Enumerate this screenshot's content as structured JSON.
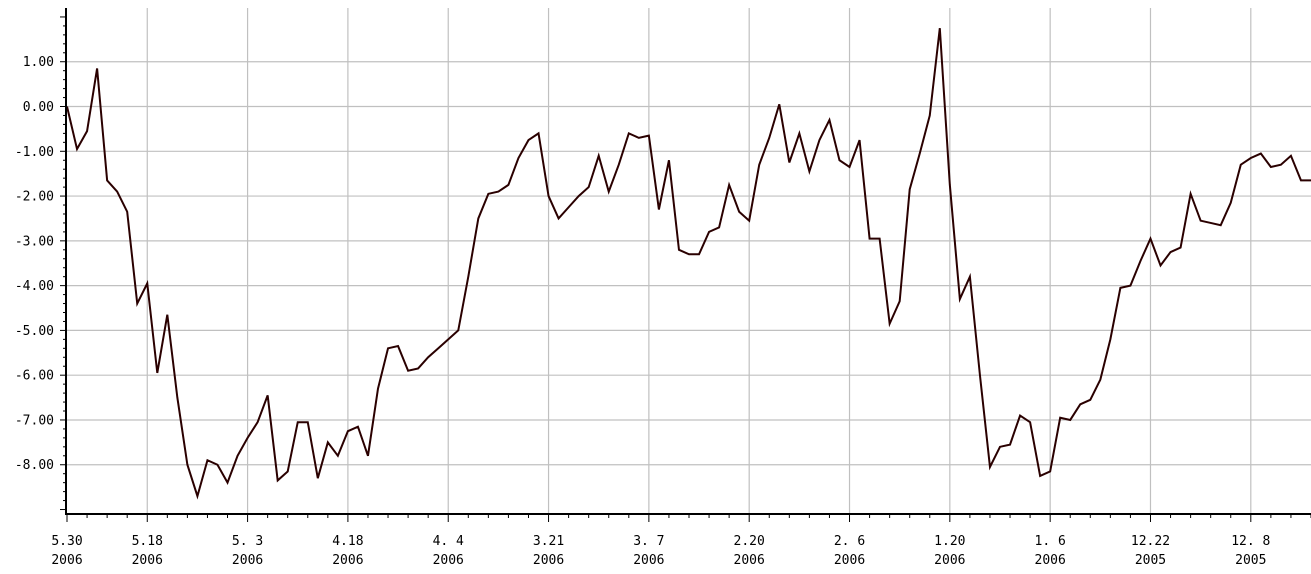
{
  "chart_data": {
    "type": "line",
    "title": "",
    "xlabel": "",
    "ylabel": "",
    "ylim": [
      -9.1,
      2.2
    ],
    "grid": true,
    "line_color": "#2a0000",
    "grid_color": "#c0c0c0",
    "y_ticks": [
      {
        "value": 1.0,
        "label": "1.00"
      },
      {
        "value": 0.0,
        "label": "0.00"
      },
      {
        "value": -1.0,
        "label": "-1.00"
      },
      {
        "value": -2.0,
        "label": "-2.00"
      },
      {
        "value": -3.0,
        "label": "-3.00"
      },
      {
        "value": -4.0,
        "label": "-4.00"
      },
      {
        "value": -5.0,
        "label": "-5.00"
      },
      {
        "value": -6.0,
        "label": "-6.00"
      },
      {
        "value": -7.0,
        "label": "-7.00"
      },
      {
        "value": -8.0,
        "label": "-8.00"
      }
    ],
    "x_ticks": [
      {
        "index": 0,
        "line1": "5.30",
        "line2": "2006"
      },
      {
        "index": 8,
        "line1": "5.18",
        "line2": "2006"
      },
      {
        "index": 18,
        "line1": "5. 3",
        "line2": "2006"
      },
      {
        "index": 28,
        "line1": "4.18",
        "line2": "2006"
      },
      {
        "index": 38,
        "line1": "4. 4",
        "line2": "2006"
      },
      {
        "index": 48,
        "line1": "3.21",
        "line2": "2006"
      },
      {
        "index": 58,
        "line1": "3. 7",
        "line2": "2006"
      },
      {
        "index": 68,
        "line1": "2.20",
        "line2": "2006"
      },
      {
        "index": 78,
        "line1": "2. 6",
        "line2": "2006"
      },
      {
        "index": 88,
        "line1": "1.20",
        "line2": "2006"
      },
      {
        "index": 98,
        "line1": "1. 6",
        "line2": "2006"
      },
      {
        "index": 108,
        "line1": "12.22",
        "line2": "2005"
      },
      {
        "index": 118,
        "line1": "12. 8",
        "line2": "2005"
      }
    ],
    "values": [
      0.0,
      -0.95,
      -0.55,
      0.85,
      -1.65,
      -1.9,
      -2.35,
      -4.4,
      -3.95,
      -5.95,
      -4.65,
      -6.5,
      -8.0,
      -8.7,
      -7.9,
      -8.0,
      -8.4,
      -7.8,
      -7.4,
      -7.05,
      -6.45,
      -8.35,
      -8.15,
      -7.05,
      -7.05,
      -8.3,
      -7.5,
      -7.8,
      -7.25,
      -7.15,
      -7.8,
      -6.3,
      -5.4,
      -5.35,
      -5.9,
      -5.85,
      -5.6,
      -5.4,
      -5.2,
      -5.0,
      -3.8,
      -2.5,
      -1.95,
      -1.9,
      -1.75,
      -1.15,
      -0.75,
      -0.6,
      -2.0,
      -2.5,
      -2.25,
      -2.0,
      -1.8,
      -1.1,
      -1.9,
      -1.3,
      -0.6,
      -0.7,
      -0.65,
      -2.3,
      -1.2,
      -3.2,
      -3.3,
      -3.3,
      -2.8,
      -2.7,
      -1.75,
      -2.35,
      -2.55,
      -1.3,
      -0.7,
      0.05,
      -1.25,
      -0.6,
      -1.45,
      -0.75,
      -0.3,
      -1.2,
      -1.35,
      -0.75,
      -2.95,
      -2.95,
      -4.85,
      -4.35,
      -1.85,
      -1.05,
      -0.2,
      1.75,
      -1.75,
      -4.3,
      -3.8,
      -6.0,
      -8.05,
      -7.6,
      -7.55,
      -6.9,
      -7.05,
      -8.25,
      -8.15,
      -6.95,
      -7.0,
      -6.65,
      -6.55,
      -6.1,
      -5.2,
      -4.05,
      -4.0,
      -3.45,
      -2.95,
      -3.55,
      -3.25,
      -3.15,
      -1.95,
      -2.55,
      -2.6,
      -2.65,
      -2.15,
      -1.3,
      -1.15,
      -1.05,
      -1.35,
      -1.3,
      -1.1,
      -1.65,
      -1.65
    ]
  }
}
